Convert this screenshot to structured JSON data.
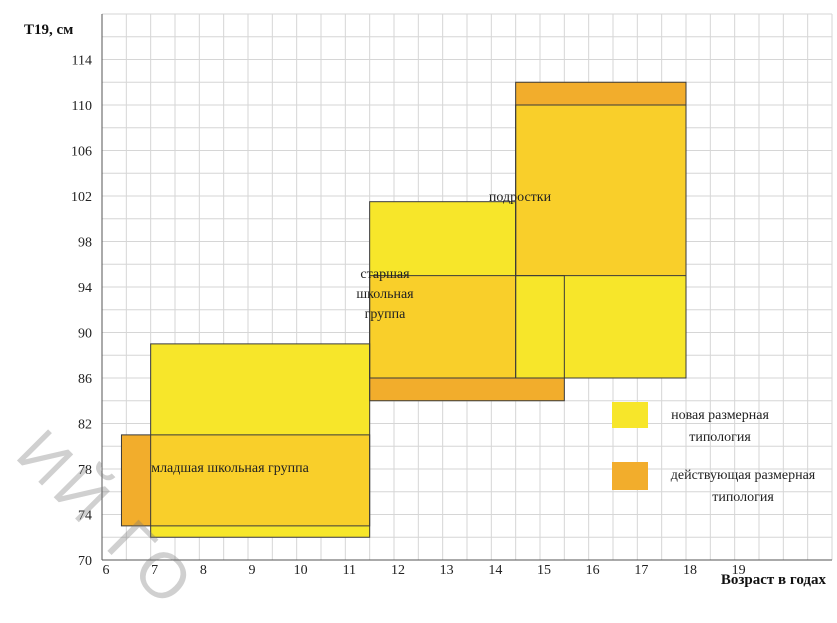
{
  "chart_data": {
    "type": "area",
    "ylabel": "Т19, см",
    "xlabel": "Возраст в годах",
    "x_ticks": [
      6,
      7,
      8,
      9,
      10,
      11,
      12,
      13,
      14,
      15,
      16,
      17,
      18,
      19
    ],
    "y_ticks": [
      70,
      74,
      78,
      82,
      86,
      90,
      94,
      98,
      102,
      106,
      110,
      114
    ],
    "xlim": [
      6,
      21
    ],
    "ylim": [
      70,
      118
    ],
    "grid": true,
    "colors": {
      "new": "#f7e62a",
      "current": "#f2ad2c",
      "overlap": "#f9cf2a",
      "frame": "#3a3a3a"
    },
    "regions": [
      {
        "group": "младшая школьная группа",
        "typology": "новая размерная типология",
        "x": [
          7,
          11.5
        ],
        "y": [
          72,
          89
        ]
      },
      {
        "group": "младшая школьная группа",
        "typology": "действующая размерная типология",
        "x": [
          6.4,
          11.5
        ],
        "y": [
          73,
          81
        ]
      },
      {
        "group": "старшая школьная группа",
        "typology": "новая размерная типология",
        "x": [
          11.5,
          14.5
        ],
        "y": [
          86,
          101.5
        ]
      },
      {
        "group": "старшая школьная группа",
        "typology": "действующая размерная типология",
        "x": [
          11.5,
          15.5
        ],
        "y": [
          84,
          95
        ]
      },
      {
        "group": "подростки",
        "typology": "новая размерная типология",
        "x": [
          14.5,
          18
        ],
        "y": [
          86,
          110
        ]
      },
      {
        "group": "подростки",
        "typology": "действующая размерная типология",
        "x": [
          14.5,
          18
        ],
        "y": [
          95,
          112
        ]
      }
    ],
    "region_labels": {
      "junior": "младшая школьная группа",
      "senior": "старшая школьная группа",
      "teens": "подростки"
    },
    "legend": [
      {
        "label": "новая размерная типология",
        "color": "#f7e62a"
      },
      {
        "label": "действующая размерная типология",
        "color": "#f2ad2c"
      }
    ],
    "legend_position": "right"
  }
}
